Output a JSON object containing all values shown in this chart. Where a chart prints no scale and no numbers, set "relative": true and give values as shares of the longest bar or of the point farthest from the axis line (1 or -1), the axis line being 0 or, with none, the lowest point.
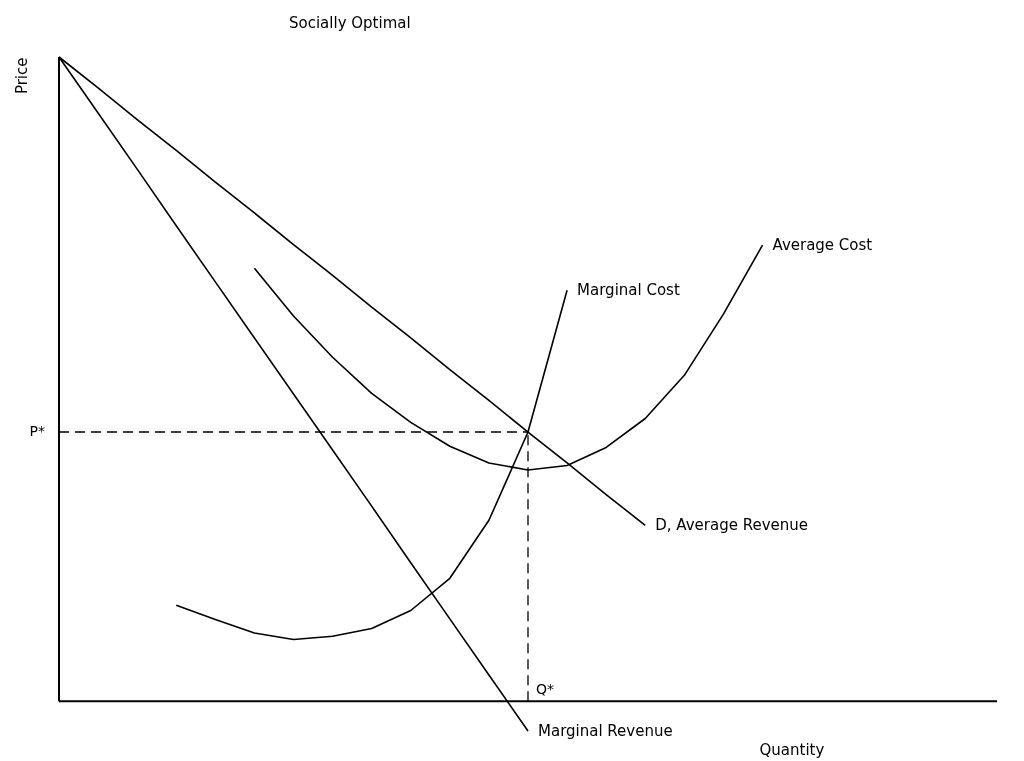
{
  "chart_data": {
    "type": "line",
    "title": "Socially Optimal",
    "xlabel": "Quantity",
    "ylabel": "Price",
    "relative": true,
    "legend": false,
    "marker": "none",
    "line_style": "solid",
    "grid": false,
    "tick_labels": false,
    "categories": [
      null,
      null,
      null,
      null,
      null,
      null,
      null,
      null,
      null,
      null,
      null,
      null,
      null,
      null,
      null,
      null,
      null,
      null,
      null,
      null,
      null,
      null,
      null,
      null,
      null
    ],
    "series": [
      {
        "name": "D, Average Revenue",
        "color": "#000000",
        "values": [
          1,
          0.952,
          0.903,
          0.855,
          0.806,
          0.758,
          0.709,
          0.661,
          0.612,
          0.564,
          0.515,
          0.467,
          0.418,
          0.37,
          0.321,
          0.273,
          null,
          null,
          null,
          null,
          null,
          null,
          null,
          null,
          null
        ]
      },
      {
        "name": "Marginal Revenue",
        "color": "#000000",
        "values": [
          1,
          0.913,
          0.826,
          0.738,
          0.651,
          0.564,
          0.477,
          0.39,
          0.303,
          0.215,
          0.128,
          0.041,
          -0.046,
          null,
          null,
          null,
          null,
          null,
          null,
          null,
          null,
          null,
          null,
          null,
          null
        ]
      },
      {
        "name": "Marginal Cost",
        "color": "#000000",
        "values": [
          null,
          null,
          null,
          0.149,
          0.127,
          0.106,
          0.096,
          0.101,
          0.113,
          0.141,
          0.191,
          0.281,
          0.418,
          0.638,
          null,
          null,
          null,
          null,
          null,
          null,
          null,
          null,
          null,
          null,
          null
        ]
      },
      {
        "name": "Average Cost",
        "color": "#000000",
        "values": [
          null,
          null,
          null,
          null,
          null,
          0.672,
          0.598,
          0.534,
          0.478,
          0.433,
          0.396,
          0.37,
          0.359,
          0.366,
          0.394,
          0.439,
          0.506,
          0.601,
          0.708,
          null,
          null,
          null,
          null,
          null,
          null
        ]
      }
    ],
    "annotations": [
      "Q*"
    ],
    "ref_lines": [
      {
        "axis": "y",
        "value": 0.418,
        "label": "P*",
        "line_style": "dashed"
      }
    ]
  }
}
